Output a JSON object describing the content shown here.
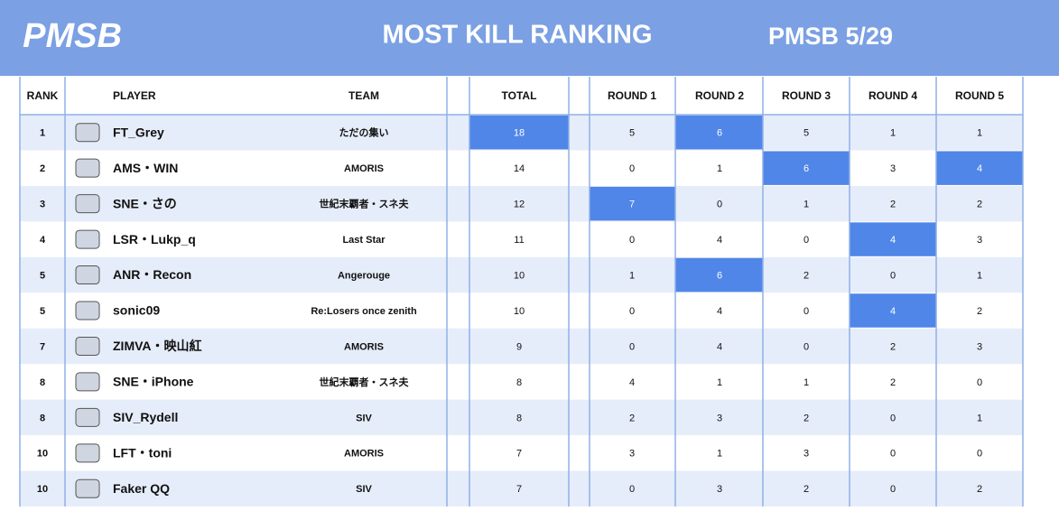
{
  "header": {
    "logo": "PMSB",
    "title": "MOST KILL RANKING",
    "event": "PMSB 5/29"
  },
  "table": {
    "columns": [
      "RANK",
      "PLAYER",
      "TEAM",
      "TOTAL",
      "ROUND 1",
      "ROUND 2",
      "ROUND 3",
      "ROUND 4",
      "ROUND 5"
    ],
    "highlight_color": "#4f86e8",
    "rows": [
      {
        "cells": [
          1,
          "FT_Grey",
          "ただの集い",
          18,
          5,
          6,
          5,
          1,
          1
        ],
        "highlighted": [
          3,
          5
        ]
      },
      {
        "cells": [
          2,
          "AMS・WIN",
          "AMORIS",
          14,
          0,
          1,
          6,
          3,
          4
        ],
        "highlighted": [
          6,
          8
        ]
      },
      {
        "cells": [
          3,
          "SNE・さの",
          "世紀末覇者・スネ夫",
          12,
          7,
          0,
          1,
          2,
          2
        ],
        "highlighted": [
          4
        ]
      },
      {
        "cells": [
          4,
          "LSR・Lukp_q",
          "Last Star",
          11,
          0,
          4,
          0,
          4,
          3
        ],
        "highlighted": [
          7
        ]
      },
      {
        "cells": [
          5,
          "ANR・Recon",
          "Angerouge",
          10,
          1,
          6,
          2,
          0,
          1
        ],
        "highlighted": [
          5
        ]
      },
      {
        "cells": [
          5,
          "sonic09",
          "Re:Losers once zenith",
          10,
          0,
          4,
          0,
          4,
          2
        ],
        "highlighted": [
          7
        ]
      },
      {
        "cells": [
          7,
          "ZIMVA・映山紅",
          "AMORIS",
          9,
          0,
          4,
          0,
          2,
          3
        ],
        "highlighted": []
      },
      {
        "cells": [
          8,
          "SNE・iPhone",
          "世紀末覇者・スネ夫",
          8,
          4,
          1,
          1,
          2,
          0
        ],
        "highlighted": []
      },
      {
        "cells": [
          8,
          "SIV_Rydell",
          "SIV",
          8,
          2,
          3,
          2,
          0,
          1
        ],
        "highlighted": []
      },
      {
        "cells": [
          10,
          "LFT・toni",
          "AMORIS",
          7,
          3,
          1,
          3,
          0,
          0
        ],
        "highlighted": []
      },
      {
        "cells": [
          10,
          "Faker QQ",
          "SIV",
          7,
          0,
          3,
          2,
          0,
          2
        ],
        "highlighted": []
      }
    ]
  }
}
